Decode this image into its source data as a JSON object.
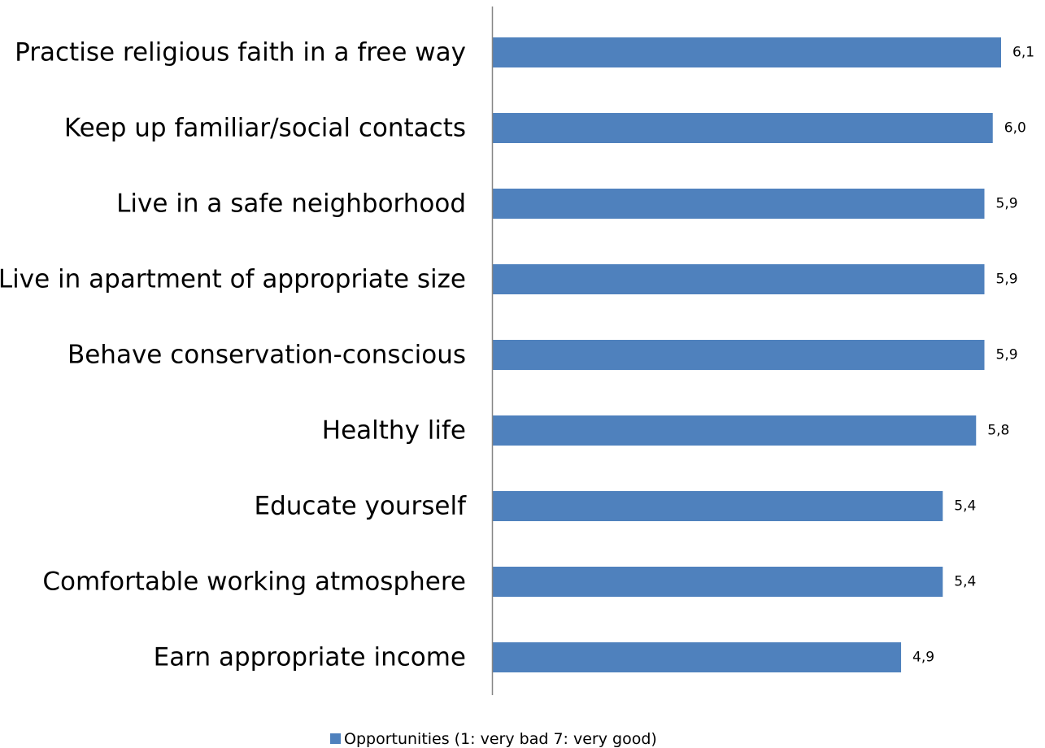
{
  "chart_data": {
    "type": "bar",
    "orientation": "horizontal",
    "title": "",
    "xlabel": "",
    "ylabel": "",
    "categories": [
      "Practise religious faith in a free way",
      "Keep up familiar/social contacts",
      "Live in a safe neighborhood",
      "Live in apartment of appropriate size",
      "Behave conservation-conscious",
      "Healthy life",
      "Educate yourself",
      "Comfortable working atmosphere",
      "Earn appropriate income"
    ],
    "values": [
      6.1,
      6.0,
      5.9,
      5.9,
      5.9,
      5.8,
      5.4,
      5.4,
      4.9
    ],
    "value_labels": [
      "6,1",
      "6,0",
      "5,9",
      "5,9",
      "5,9",
      "5,8",
      "5,4",
      "5,4",
      "4,9"
    ],
    "series": [
      {
        "name": "Opportunities (1: very bad 7: very good)",
        "values": [
          6.1,
          6.0,
          5.9,
          5.9,
          5.9,
          5.8,
          5.4,
          5.4,
          4.9
        ]
      }
    ],
    "xlim": [
      0,
      6.1
    ],
    "grid": false,
    "legend_position": "bottom",
    "bar_color": "#4F81BD",
    "axis_color": "#868686"
  }
}
